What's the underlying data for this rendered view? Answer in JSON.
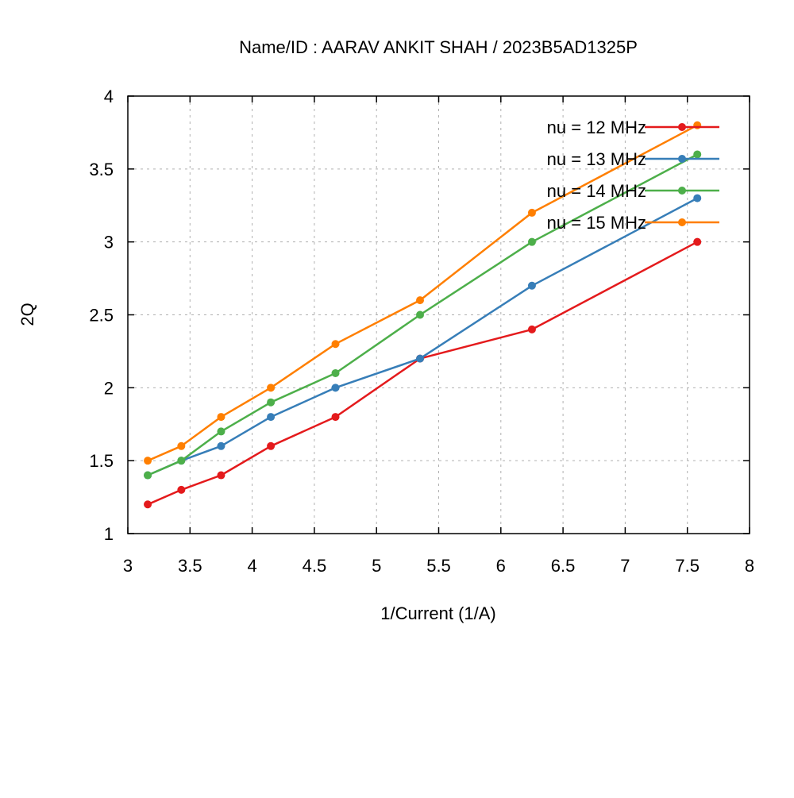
{
  "chart_data": {
    "type": "line",
    "title": "Name/ID : AARAV ANKIT SHAH / 2023B5AD1325P",
    "xlabel": "1/Current (1/A)",
    "ylabel": "2Q",
    "xlim": [
      3,
      8
    ],
    "ylim": [
      1,
      4
    ],
    "xticks": [
      "3",
      "3.5",
      "4",
      "4.5",
      "5",
      "5.5",
      "6",
      "6.5",
      "7",
      "7.5",
      "8"
    ],
    "yticks": [
      "1",
      "1.5",
      "2",
      "2.5",
      "3",
      "3.5",
      "4"
    ],
    "grid": true,
    "legend_position": "top-right",
    "x": [
      3.16,
      3.43,
      3.75,
      4.15,
      4.67,
      5.35,
      6.25,
      7.58
    ],
    "series": [
      {
        "name": "nu = 12 MHz",
        "color": "#e41a1c",
        "values": [
          1.2,
          1.3,
          1.4,
          1.6,
          1.8,
          2.2,
          2.4,
          3.0
        ]
      },
      {
        "name": "nu = 13 MHz",
        "color": "#377eb8",
        "values": [
          1.4,
          1.5,
          1.6,
          1.8,
          2.0,
          2.2,
          2.7,
          3.3
        ]
      },
      {
        "name": "nu = 14 MHz",
        "color": "#4daf4a",
        "values": [
          1.4,
          1.5,
          1.7,
          1.9,
          2.1,
          2.5,
          3.0,
          3.6
        ]
      },
      {
        "name": "nu = 15 MHz",
        "color": "#ff7f00",
        "values": [
          1.5,
          1.6,
          1.8,
          2.0,
          2.3,
          2.6,
          3.2,
          3.8
        ]
      }
    ]
  }
}
